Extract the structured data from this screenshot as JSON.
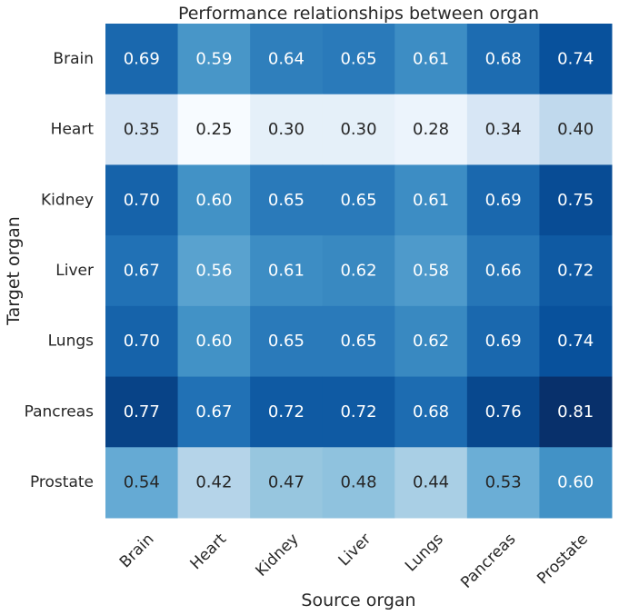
{
  "chart_data": {
    "type": "heatmap",
    "title": "Performance relationships between organ",
    "xlabel": "Source organ",
    "ylabel": "Target organ",
    "x_categories": [
      "Brain",
      "Heart",
      "Kidney",
      "Liver",
      "Lungs",
      "Pancreas",
      "Prostate"
    ],
    "y_categories": [
      "Brain",
      "Heart",
      "Kidney",
      "Liver",
      "Lungs",
      "Pancreas",
      "Prostate"
    ],
    "values": [
      [
        0.69,
        0.59,
        0.64,
        0.65,
        0.61,
        0.68,
        0.74
      ],
      [
        0.35,
        0.25,
        0.3,
        0.3,
        0.28,
        0.34,
        0.4
      ],
      [
        0.7,
        0.6,
        0.65,
        0.65,
        0.61,
        0.69,
        0.75
      ],
      [
        0.67,
        0.56,
        0.61,
        0.62,
        0.58,
        0.66,
        0.72
      ],
      [
        0.7,
        0.6,
        0.65,
        0.65,
        0.62,
        0.69,
        0.74
      ],
      [
        0.77,
        0.67,
        0.72,
        0.72,
        0.68,
        0.76,
        0.81
      ],
      [
        0.54,
        0.42,
        0.47,
        0.48,
        0.44,
        0.53,
        0.6
      ]
    ],
    "value_format": "2 decimals",
    "color_scale": {
      "name": "Blues",
      "vmin": 0.25,
      "vmax": 0.81,
      "low_color": "#f7fbff",
      "high_color": "#08306b",
      "stops": [
        "#f7fbff",
        "#deebf7",
        "#c6dbef",
        "#9ecae1",
        "#6baed6",
        "#4292c6",
        "#2171b5",
        "#08519c",
        "#08306b"
      ]
    },
    "cell_text_light": "#ffffff",
    "cell_text_dark": "#262626",
    "grid": false,
    "legend": "none"
  }
}
